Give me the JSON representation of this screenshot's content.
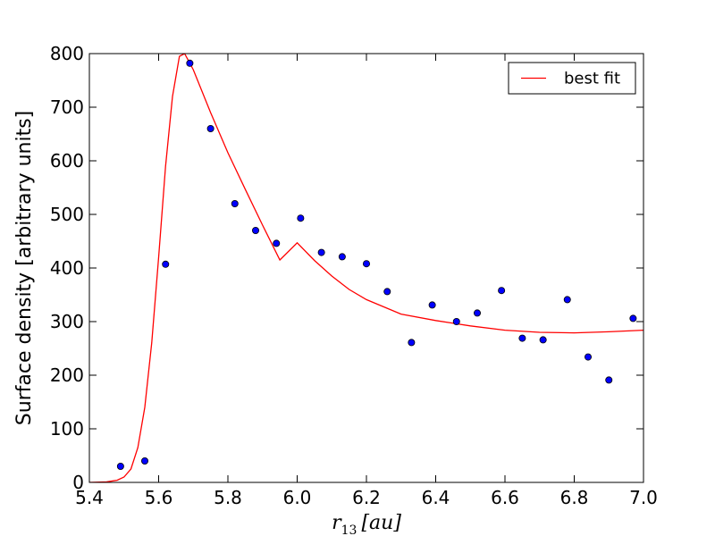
{
  "chart_data": {
    "type": "scatter",
    "ylabel": "Surface density [arbitrary units]",
    "xlabel": "r_13 [au]",
    "xlabel_parts": {
      "main": "r",
      "subscript": "13",
      "unit": "[au]"
    },
    "xlim": [
      5.4,
      7.0
    ],
    "ylim": [
      0,
      800
    ],
    "xticks": [
      5.4,
      5.6,
      5.8,
      6.0,
      6.2,
      6.4,
      6.6,
      6.8,
      7.0
    ],
    "xtick_labels": [
      "5.4",
      "5.6",
      "5.8",
      "6.0",
      "6.2",
      "6.4",
      "6.6",
      "6.8",
      "7.0"
    ],
    "yticks": [
      0,
      100,
      200,
      300,
      400,
      500,
      600,
      700,
      800
    ],
    "ytick_labels": [
      "0",
      "100",
      "200",
      "300",
      "400",
      "500",
      "600",
      "700",
      "800"
    ],
    "grid": false,
    "legend_position": "top-right",
    "series": [
      {
        "name": "best fit",
        "kind": "line",
        "color": "#ff0000",
        "x": [
          5.4,
          5.45,
          5.48,
          5.5,
          5.52,
          5.54,
          5.56,
          5.58,
          5.6,
          5.62,
          5.64,
          5.66,
          5.675,
          5.7,
          5.75,
          5.8,
          5.85,
          5.9,
          5.95,
          6.0,
          6.05,
          6.1,
          6.15,
          6.2,
          6.3,
          6.4,
          6.5,
          6.6,
          6.7,
          6.8,
          6.9,
          7.0
        ],
        "y": [
          0,
          1,
          4,
          10,
          25,
          65,
          140,
          260,
          420,
          590,
          720,
          795,
          800,
          770,
          690,
          615,
          547,
          480,
          415,
          447,
          414,
          385,
          360,
          341,
          314,
          302,
          292,
          284,
          280,
          279,
          281,
          284
        ]
      },
      {
        "name": "",
        "kind": "scatter",
        "color": "#0000ff",
        "edge_color": "#000000",
        "x": [
          5.49,
          5.56,
          5.62,
          5.69,
          5.75,
          5.82,
          5.88,
          5.94,
          6.01,
          6.07,
          6.13,
          6.2,
          6.26,
          6.33,
          6.39,
          6.46,
          6.52,
          6.59,
          6.65,
          6.71,
          6.78,
          6.84,
          6.9,
          6.97
        ],
        "y": [
          30,
          40,
          407,
          782,
          660,
          520,
          470,
          446,
          493,
          429,
          421,
          408,
          356,
          261,
          331,
          300,
          316,
          358,
          269,
          266,
          341,
          234,
          191,
          306
        ]
      }
    ]
  }
}
